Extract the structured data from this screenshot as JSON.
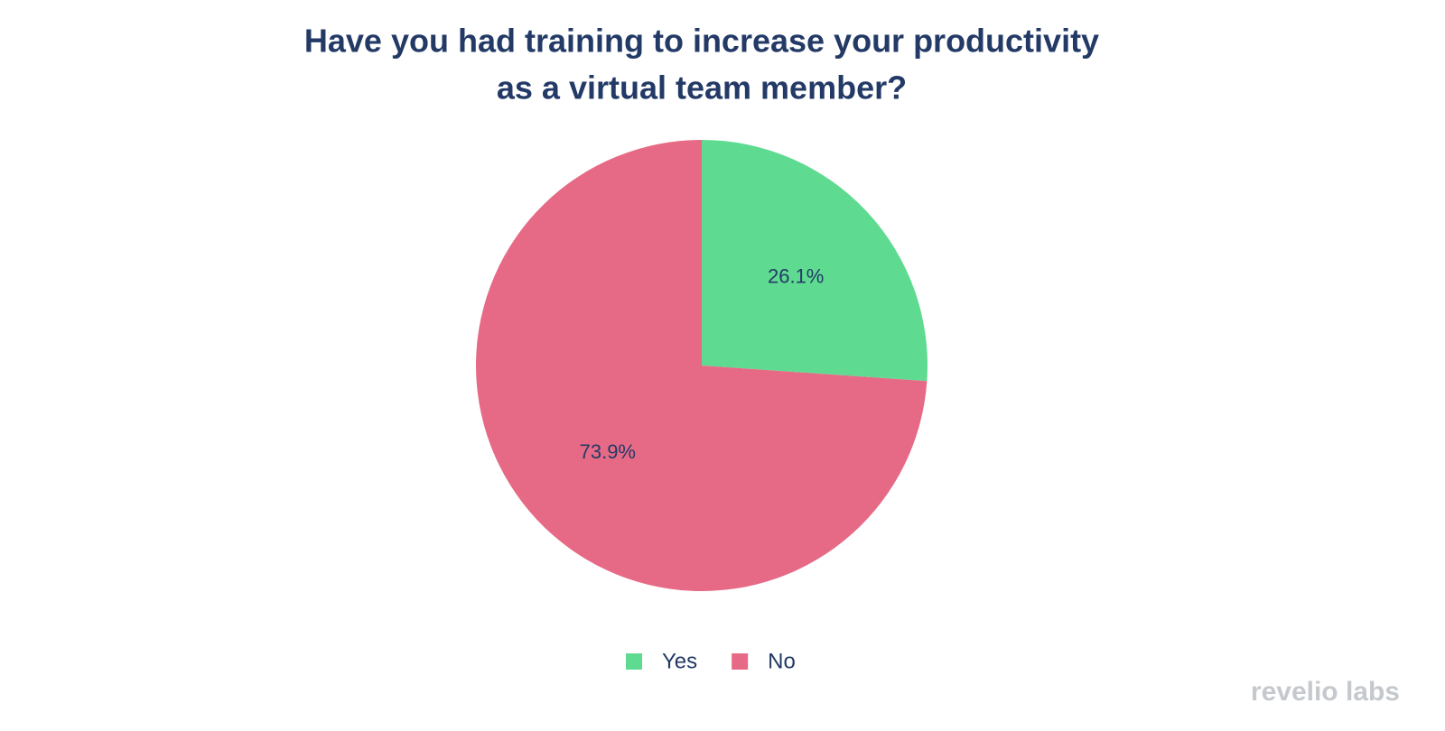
{
  "chart_data": {
    "type": "pie",
    "title": [
      "Have you had training to increase your productivity",
      "as a virtual team member?"
    ],
    "categories": [
      "Yes",
      "No"
    ],
    "values": [
      26.1,
      73.9
    ],
    "value_labels": [
      "26.1%",
      "73.9%"
    ],
    "colors": [
      "#5fdb91",
      "#e66a86"
    ],
    "legend": "bottom",
    "watermark": "revelio labs"
  }
}
